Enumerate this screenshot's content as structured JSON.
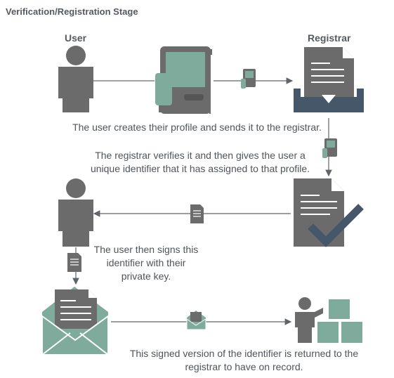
{
  "title": "Verification/Registration Stage",
  "roles": {
    "user": "User",
    "registrar": "Registrar"
  },
  "captions": {
    "step1": "The user creates their profile and sends it to the registrar.",
    "step2_line1": "The registrar verifies it and then gives the user a",
    "step2_line2": "unique identifier that it has assigned to that profile.",
    "step3_line1": "The user then signs this",
    "step3_line2": "identifier with their",
    "step3_line3": "private key.",
    "step4_line1": "This signed version of the identifier is returned to the",
    "step4_line2": "registrar to have on record."
  },
  "icons": [
    "user-icon",
    "device-icon",
    "usb-drive-icon",
    "inbox-download-icon",
    "document-check-icon",
    "envelope-icon",
    "person-with-blocks-icon",
    "document-icon"
  ],
  "colors": {
    "dark_gray": "#6b6b6b",
    "teal": "#7fab9c",
    "navy": "#455768",
    "text": "#555a5e"
  }
}
